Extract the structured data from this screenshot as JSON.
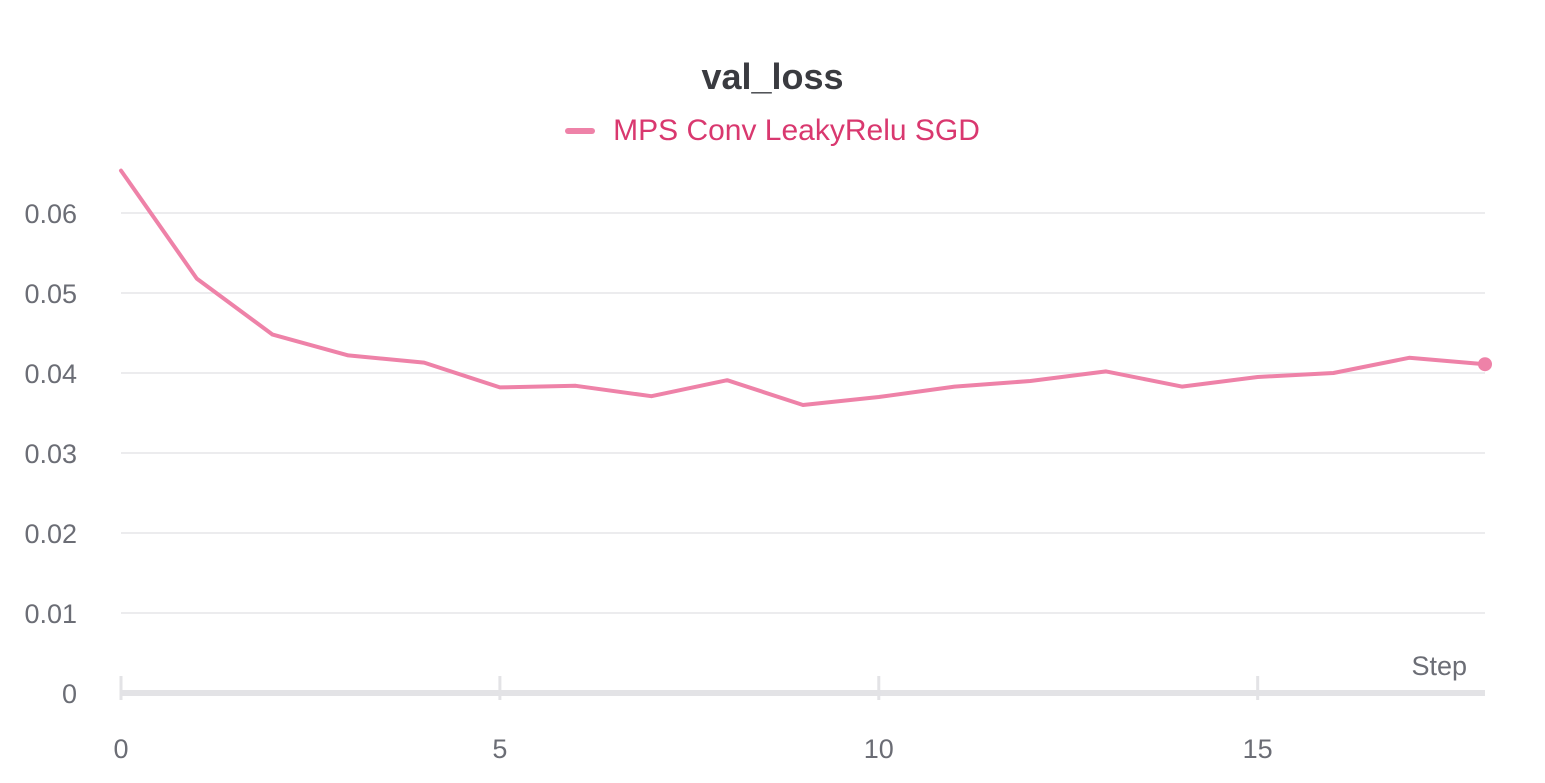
{
  "chart_data": {
    "type": "line",
    "title": "val_loss",
    "xlabel": "Step",
    "ylabel": "",
    "xlim": [
      0,
      18
    ],
    "ylim": [
      0,
      0.066
    ],
    "x_ticks": [
      0,
      5,
      10,
      15
    ],
    "y_ticks": [
      0,
      0.01,
      0.02,
      0.03,
      0.04,
      0.05,
      0.06
    ],
    "y_tick_labels": [
      "0",
      "0.01",
      "0.02",
      "0.03",
      "0.04",
      "0.05",
      "0.06"
    ],
    "grid": "horizontal",
    "legend_position": "top-center",
    "series": [
      {
        "name": "MPS Conv LeakyRelu SGD",
        "color": "#ee82a8",
        "label_color": "#d9386f",
        "x": [
          0,
          1,
          2,
          3,
          4,
          5,
          6,
          7,
          8,
          9,
          10,
          11,
          12,
          13,
          14,
          15,
          16,
          17,
          18
        ],
        "values": [
          0.0653,
          0.0518,
          0.0448,
          0.0422,
          0.0413,
          0.0382,
          0.0384,
          0.0371,
          0.0391,
          0.036,
          0.037,
          0.0383,
          0.039,
          0.0402,
          0.0383,
          0.0395,
          0.04,
          0.0419,
          0.0411
        ]
      }
    ]
  }
}
